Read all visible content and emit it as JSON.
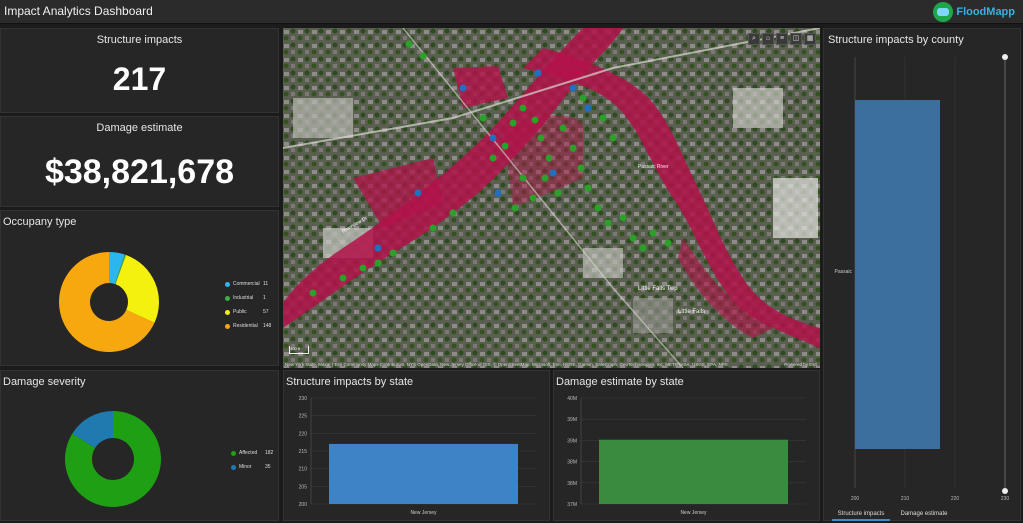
{
  "header": {
    "title": "Impact Analytics Dashboard",
    "logo_text": "FloodMapp"
  },
  "structure_impacts": {
    "title": "Structure impacts",
    "value": "217"
  },
  "damage_estimate": {
    "title": "Damage estimate",
    "value": "$38,821,678"
  },
  "occupancy": {
    "title": "Occupany type",
    "chart_data": {
      "type": "pie",
      "categories": [
        "Commercial",
        "Industrial",
        "Public",
        "Residential"
      ],
      "values": [
        11,
        1,
        57,
        148
      ],
      "colors": [
        "#2bb7ee",
        "#3cb043",
        "#f5f10e",
        "#f8a80f"
      ]
    },
    "legend_values": [
      "11",
      "1",
      "57",
      "148"
    ]
  },
  "severity": {
    "title": "Damage severity",
    "chart_data": {
      "type": "pie",
      "categories": [
        "Affected",
        "Minor"
      ],
      "values": [
        182,
        35
      ],
      "colors": [
        "#1fa014",
        "#1f7ab0"
      ]
    },
    "legend_values": [
      "182",
      "35"
    ]
  },
  "map": {
    "attribution": "New York State, Maxar | Esri Community Maps Contributors, NYS OpenData, New Jersey Office of GIS, © OpenStreetMap, Microsoft, Esri, HERE, Garmin, SafeGraph, GeoTechnologies, Inc, METI/NASA, USGS, EPA, NPS,",
    "powered_by": "Powered by Esri",
    "scale_label": "300 ft",
    "labels": [
      "Little Falls",
      "Little Falls Twp",
      "Riverview Dr",
      "Passaic River"
    ],
    "tools": [
      "zoom-icon",
      "home-icon",
      "layers-icon",
      "basemap-icon",
      "grid-icon"
    ]
  },
  "state_impacts": {
    "title": "Structure impacts by state",
    "chart_data": {
      "type": "bar",
      "categories": [
        "New Jersey"
      ],
      "values": [
        217
      ],
      "ylim": [
        200,
        230
      ],
      "yticks": [
        "200",
        "205",
        "210",
        "215",
        "220",
        "225",
        "230"
      ],
      "color": "#3d84c6"
    }
  },
  "state_damage": {
    "title": "Damage estimate by state",
    "chart_data": {
      "type": "bar",
      "categories": [
        "New Jersey"
      ],
      "values": [
        38.82
      ],
      "ylim": [
        37,
        40
      ],
      "yticks": [
        "37M",
        "38M",
        "38M",
        "39M",
        "39M",
        "40M"
      ],
      "color": "#3a8b40"
    }
  },
  "county": {
    "title": "Structure impacts by county",
    "chart_data": {
      "type": "bar",
      "orientation": "horizontal",
      "categories": [
        "Passaic"
      ],
      "values": [
        217
      ],
      "xlim": [
        200,
        230
      ],
      "xticks": [
        "200",
        "210",
        "220",
        "230"
      ],
      "color": "#3c6e9e"
    },
    "tabs": [
      "Structure impacts",
      "Damage estimate"
    ]
  }
}
